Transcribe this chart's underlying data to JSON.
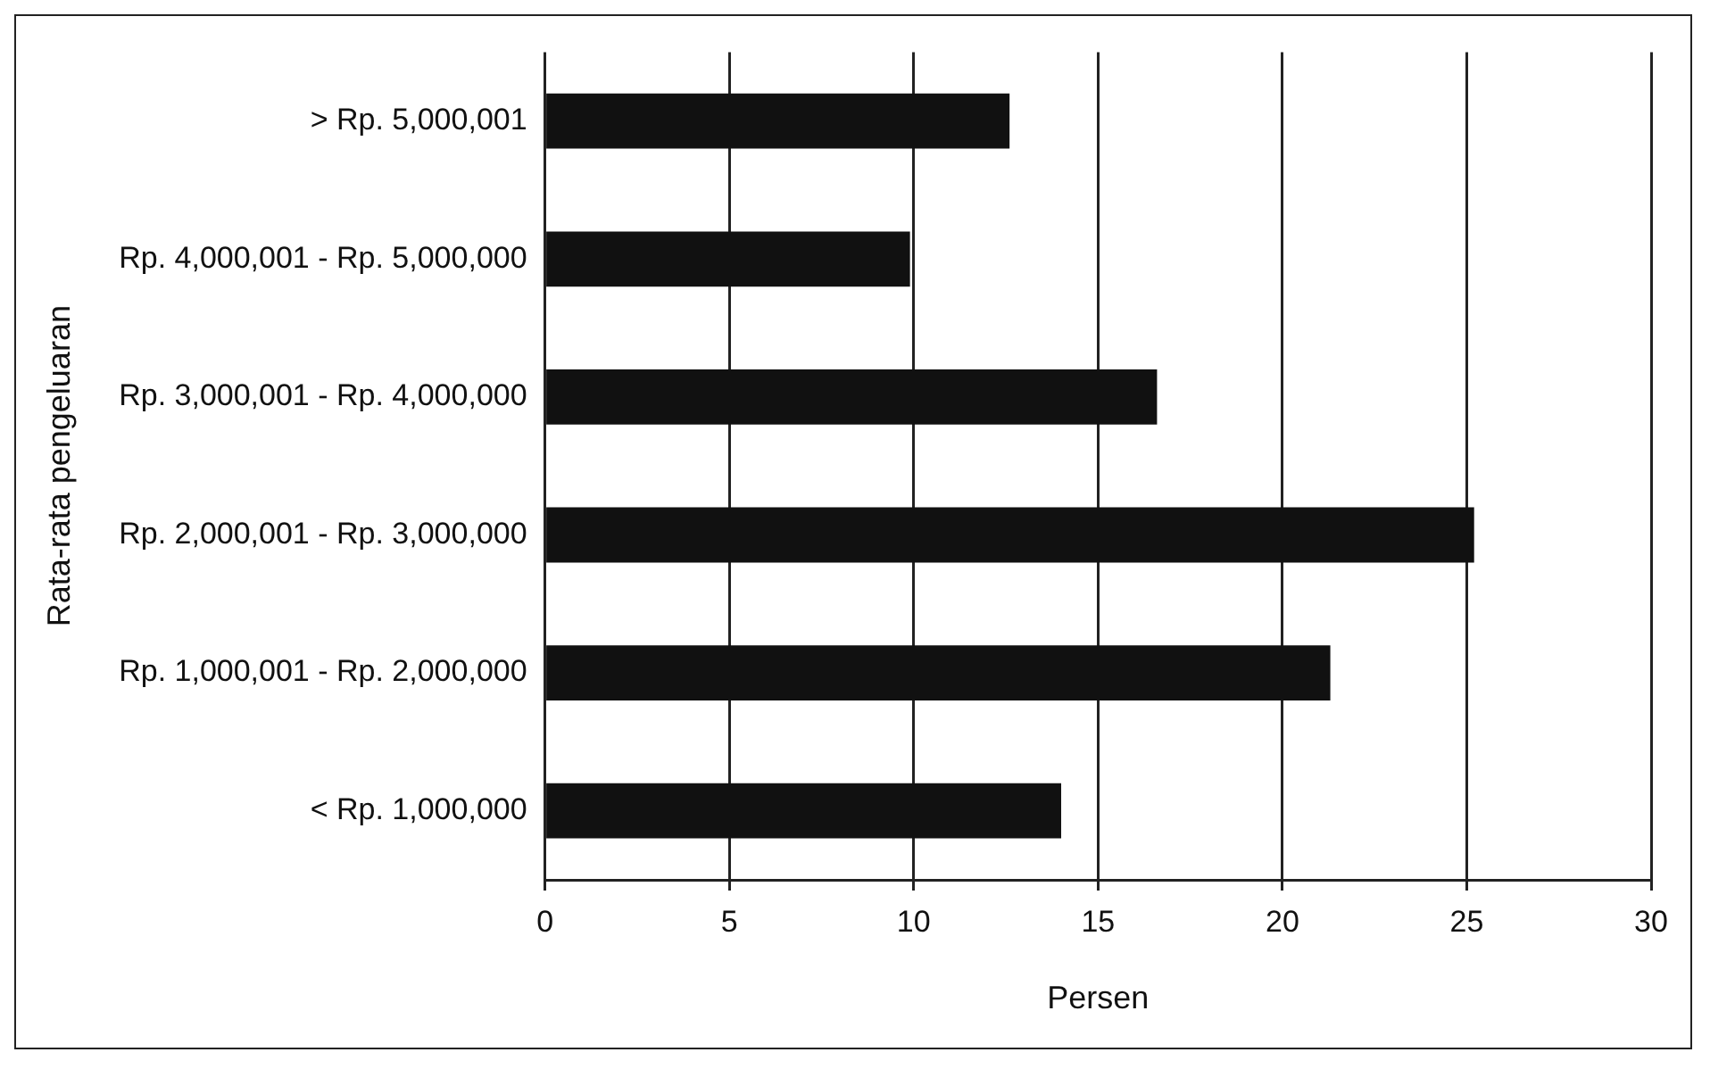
{
  "chart_data": {
    "type": "bar",
    "orientation": "horizontal",
    "xlabel": "Persen",
    "ylabel": "Rata-rata pengeluaran",
    "categories": [
      "> Rp. 5,000,001",
      "Rp. 4,000,001 - Rp. 5,000,000",
      "Rp. 3,000,001 - Rp. 4,000,000",
      "Rp. 2,000,001 - Rp. 3,000,000",
      "Rp. 1,000,001 - Rp. 2,000,000",
      "< Rp. 1,000,000"
    ],
    "values": [
      12.6,
      9.9,
      16.6,
      25.2,
      21.3,
      14.0
    ],
    "color": "#111111",
    "xlim": [
      0,
      30
    ],
    "xticks": [
      0,
      5,
      10,
      15,
      20,
      25,
      30
    ],
    "grid": "x",
    "legend": false
  }
}
